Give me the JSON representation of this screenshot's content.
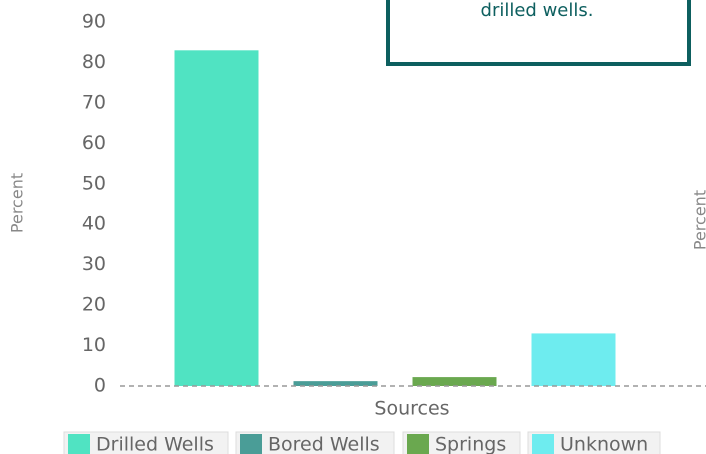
{
  "chart_data": {
    "type": "bar",
    "annotation": "drilled wells.",
    "y_label": "Percent",
    "y2_label": "Percent",
    "x_label": "Sources",
    "categories": [
      "Drilled Wells",
      "Bored Wells",
      "Springs",
      "Unknown"
    ],
    "values": [
      83,
      1.2,
      2.2,
      13
    ],
    "colors": [
      "#50e3c2",
      "#4a9d97",
      "#6aa84f",
      "#6eecef"
    ],
    "ylim": [
      0,
      90
    ],
    "yticks": [
      0,
      10,
      20,
      30,
      40,
      50,
      60,
      70,
      80,
      90
    ]
  }
}
